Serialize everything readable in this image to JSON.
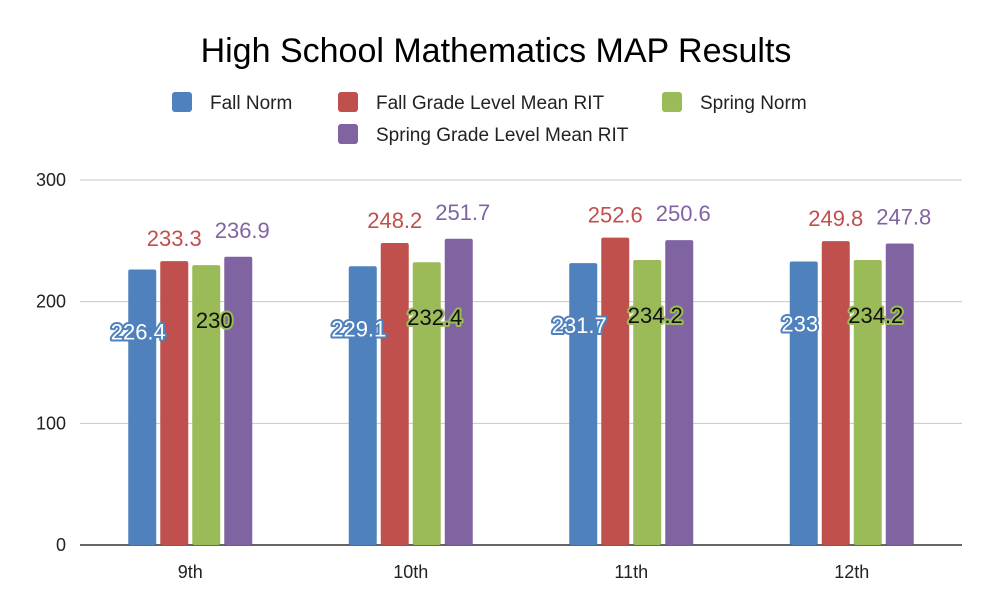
{
  "chart_data": {
    "type": "bar",
    "title": "High School Mathematics MAP Results",
    "xlabel": "",
    "ylabel": "",
    "categories": [
      "9th",
      "10th",
      "11th",
      "12th"
    ],
    "ylim": [
      0,
      300
    ],
    "yticks": [
      "0",
      "100",
      "200",
      "300"
    ],
    "grid": true,
    "legend_position": "top",
    "series": [
      {
        "name": "Fall Norm",
        "color": "#4f81bd",
        "values": [
          226.4,
          229.1,
          231.7,
          233
        ],
        "labels": [
          "226.4",
          "229.1",
          "231.7",
          "233"
        ]
      },
      {
        "name": "Fall Grade Level Mean RIT",
        "color": "#c0504d",
        "values": [
          233.3,
          248.2,
          252.6,
          249.8
        ],
        "labels": [
          "233.3",
          "248.2",
          "252.6",
          "249.8"
        ]
      },
      {
        "name": "Spring Norm",
        "color": "#9bbb59",
        "values": [
          230,
          232.4,
          234.2,
          234.2
        ],
        "labels": [
          "230",
          "232.4",
          "234.2",
          "234.2"
        ]
      },
      {
        "name": "Spring Grade Level Mean RIT",
        "color": "#8064a2",
        "values": [
          236.9,
          251.7,
          250.6,
          247.8
        ],
        "labels": [
          "236.9",
          "251.7",
          "250.6",
          "247.8"
        ]
      }
    ]
  }
}
